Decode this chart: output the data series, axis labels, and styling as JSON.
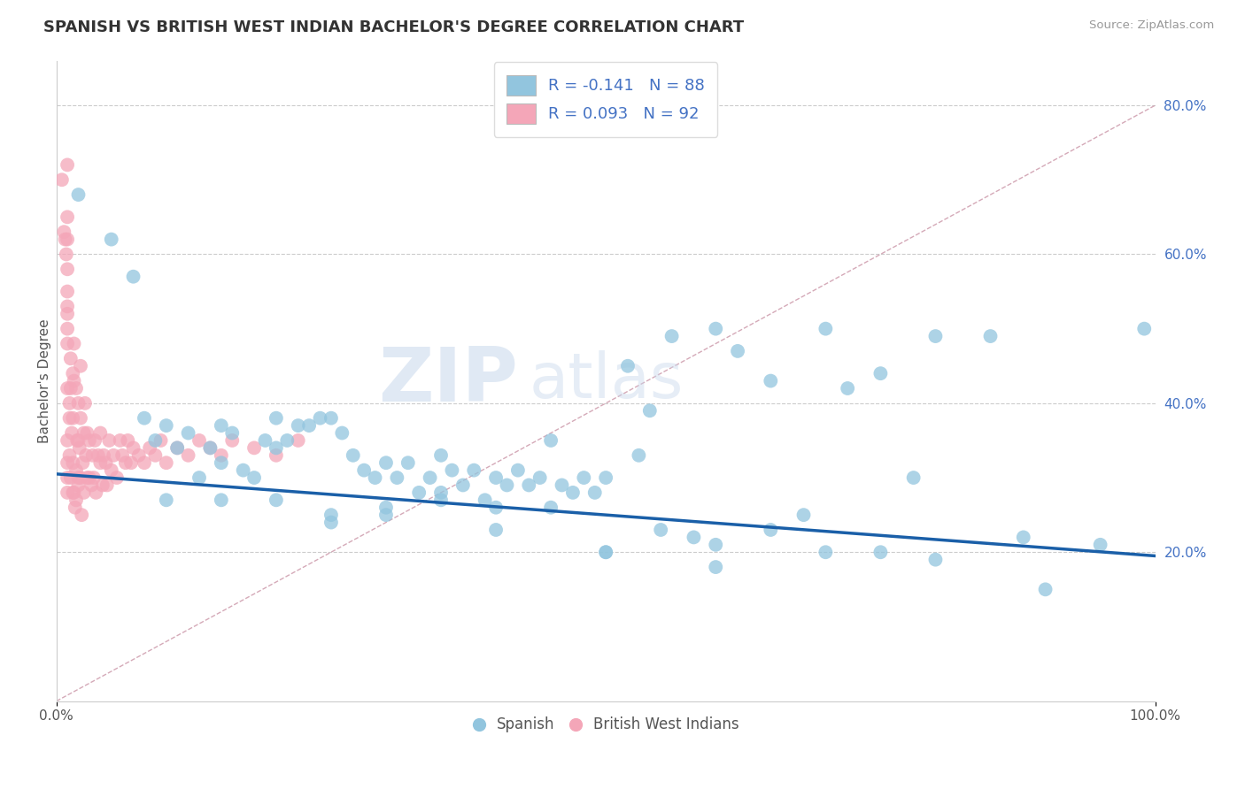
{
  "title": "SPANISH VS BRITISH WEST INDIAN BACHELOR'S DEGREE CORRELATION CHART",
  "source": "Source: ZipAtlas.com",
  "ylabel": "Bachelor's Degree",
  "watermark_zip": "ZIP",
  "watermark_atlas": "atlas",
  "legend_r1": "R = -0.141",
  "legend_n1": "N = 88",
  "legend_r2": "R = 0.093",
  "legend_n2": "N = 92",
  "legend_label1": "Spanish",
  "legend_label2": "British West Indians",
  "blue_color": "#92c5de",
  "pink_color": "#f4a6b8",
  "trendline_blue": "#1a5fa8",
  "ref_line_color": "#d0a0b0",
  "xlim": [
    0,
    1.0
  ],
  "ylim": [
    0,
    0.86
  ],
  "ytick_positions_right": [
    0.2,
    0.4,
    0.6,
    0.8
  ],
  "ytick_labels_right": [
    "20.0%",
    "40.0%",
    "60.0%",
    "80.0%"
  ],
  "title_fontsize": 13,
  "axis_label_fontsize": 11,
  "tick_fontsize": 11,
  "blue_trend_x0": 0.0,
  "blue_trend_y0": 0.305,
  "blue_trend_x1": 1.0,
  "blue_trend_y1": 0.195,
  "spanish_x": [
    0.02,
    0.05,
    0.07,
    0.08,
    0.09,
    0.1,
    0.11,
    0.12,
    0.13,
    0.14,
    0.15,
    0.16,
    0.17,
    0.18,
    0.19,
    0.2,
    0.21,
    0.22,
    0.23,
    0.24,
    0.25,
    0.26,
    0.27,
    0.28,
    0.29,
    0.3,
    0.31,
    0.32,
    0.33,
    0.34,
    0.35,
    0.36,
    0.37,
    0.38,
    0.39,
    0.4,
    0.41,
    0.42,
    0.43,
    0.44,
    0.45,
    0.46,
    0.47,
    0.48,
    0.49,
    0.5,
    0.52,
    0.53,
    0.54,
    0.56,
    0.58,
    0.6,
    0.62,
    0.65,
    0.68,
    0.7,
    0.72,
    0.75,
    0.78,
    0.8,
    0.85,
    0.88,
    0.9,
    0.95,
    0.99,
    0.1,
    0.15,
    0.2,
    0.25,
    0.3,
    0.35,
    0.4,
    0.45,
    0.5,
    0.55,
    0.6,
    0.65,
    0.7,
    0.75,
    0.8,
    0.25,
    0.3,
    0.35,
    0.15,
    0.2,
    0.4,
    0.5,
    0.6
  ],
  "spanish_y": [
    0.68,
    0.62,
    0.57,
    0.38,
    0.35,
    0.37,
    0.34,
    0.36,
    0.3,
    0.34,
    0.37,
    0.36,
    0.31,
    0.3,
    0.35,
    0.38,
    0.35,
    0.37,
    0.37,
    0.38,
    0.38,
    0.36,
    0.33,
    0.31,
    0.3,
    0.32,
    0.3,
    0.32,
    0.28,
    0.3,
    0.33,
    0.31,
    0.29,
    0.31,
    0.27,
    0.3,
    0.29,
    0.31,
    0.29,
    0.3,
    0.35,
    0.29,
    0.28,
    0.3,
    0.28,
    0.3,
    0.45,
    0.33,
    0.39,
    0.49,
    0.22,
    0.5,
    0.47,
    0.43,
    0.25,
    0.5,
    0.42,
    0.44,
    0.3,
    0.49,
    0.49,
    0.22,
    0.15,
    0.21,
    0.5,
    0.27,
    0.27,
    0.27,
    0.25,
    0.26,
    0.28,
    0.23,
    0.26,
    0.2,
    0.23,
    0.21,
    0.23,
    0.2,
    0.2,
    0.19,
    0.24,
    0.25,
    0.27,
    0.32,
    0.34,
    0.26,
    0.2,
    0.18
  ],
  "bwi_x": [
    0.005,
    0.007,
    0.008,
    0.009,
    0.01,
    0.01,
    0.01,
    0.01,
    0.01,
    0.01,
    0.01,
    0.01,
    0.01,
    0.012,
    0.012,
    0.013,
    0.013,
    0.014,
    0.015,
    0.015,
    0.015,
    0.016,
    0.016,
    0.017,
    0.018,
    0.018,
    0.019,
    0.02,
    0.02,
    0.02,
    0.021,
    0.022,
    0.022,
    0.023,
    0.024,
    0.025,
    0.025,
    0.026,
    0.027,
    0.028,
    0.028,
    0.03,
    0.03,
    0.032,
    0.033,
    0.034,
    0.035,
    0.036,
    0.038,
    0.04,
    0.04,
    0.042,
    0.043,
    0.045,
    0.046,
    0.048,
    0.05,
    0.052,
    0.055,
    0.058,
    0.06,
    0.063,
    0.065,
    0.068,
    0.07,
    0.075,
    0.08,
    0.085,
    0.09,
    0.095,
    0.1,
    0.11,
    0.12,
    0.13,
    0.14,
    0.15,
    0.16,
    0.18,
    0.2,
    0.22,
    0.01,
    0.01,
    0.01,
    0.01,
    0.01,
    0.012,
    0.013,
    0.015,
    0.016,
    0.018,
    0.02,
    0.022
  ],
  "bwi_y": [
    0.7,
    0.63,
    0.62,
    0.6,
    0.65,
    0.58,
    0.55,
    0.62,
    0.72,
    0.3,
    0.32,
    0.35,
    0.28,
    0.38,
    0.33,
    0.42,
    0.3,
    0.36,
    0.28,
    0.32,
    0.38,
    0.28,
    0.43,
    0.26,
    0.31,
    0.27,
    0.35,
    0.3,
    0.35,
    0.29,
    0.34,
    0.3,
    0.38,
    0.25,
    0.32,
    0.36,
    0.28,
    0.4,
    0.33,
    0.3,
    0.36,
    0.3,
    0.35,
    0.29,
    0.33,
    0.3,
    0.35,
    0.28,
    0.33,
    0.32,
    0.36,
    0.29,
    0.33,
    0.32,
    0.29,
    0.35,
    0.31,
    0.33,
    0.3,
    0.35,
    0.33,
    0.32,
    0.35,
    0.32,
    0.34,
    0.33,
    0.32,
    0.34,
    0.33,
    0.35,
    0.32,
    0.34,
    0.33,
    0.35,
    0.34,
    0.33,
    0.35,
    0.34,
    0.33,
    0.35,
    0.5,
    0.53,
    0.48,
    0.42,
    0.52,
    0.4,
    0.46,
    0.44,
    0.48,
    0.42,
    0.4,
    0.45
  ]
}
